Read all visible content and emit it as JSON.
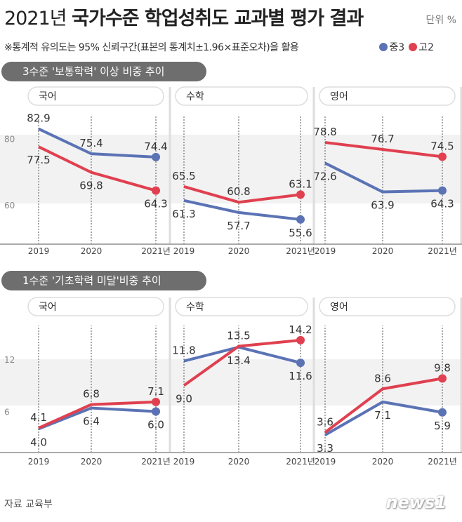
{
  "header": {
    "title_year": "2021년",
    "title_main": "국가수준 학업성취도 교과별 평가 결과",
    "unit": "단위 %",
    "note": "※통계적 유의도는 95% 신뢰구간(표본의 통계치±1.96×표준오차)을 활용"
  },
  "legend": [
    {
      "name": "중3",
      "color": "#5b73b5"
    },
    {
      "name": "고2",
      "color": "#e0404f"
    }
  ],
  "footer": {
    "source": "자료 교육부",
    "logo": "news1"
  },
  "chart_data": [
    {
      "type": "line",
      "title": "3수준 '보통학력' 이상 비중 추이",
      "yticks": [
        80,
        60
      ],
      "categories": [
        "2019",
        "2020",
        "2021년"
      ],
      "panels": [
        {
          "name": "국어",
          "series": [
            {
              "name": "중3",
              "values": [
                82.9,
                75.4,
                74.4
              ]
            },
            {
              "name": "고2",
              "values": [
                77.5,
                69.8,
                64.3
              ]
            }
          ]
        },
        {
          "name": "수학",
          "series": [
            {
              "name": "중3",
              "values": [
                61.3,
                57.7,
                55.6
              ]
            },
            {
              "name": "고2",
              "values": [
                65.5,
                60.8,
                63.1
              ]
            }
          ]
        },
        {
          "name": "영어",
          "series": [
            {
              "name": "중3",
              "values": [
                72.6,
                63.9,
                64.3
              ]
            },
            {
              "name": "고2",
              "values": [
                78.8,
                76.7,
                74.5
              ]
            }
          ]
        }
      ]
    },
    {
      "type": "line",
      "title": "1수준 '기초학력 미달'비중 추이",
      "yticks": [
        12,
        6
      ],
      "categories": [
        "2019",
        "2020",
        "2021년"
      ],
      "panels": [
        {
          "name": "국어",
          "series": [
            {
              "name": "중3",
              "values": [
                4.0,
                6.4,
                6.0
              ]
            },
            {
              "name": "고2",
              "values": [
                4.1,
                6.8,
                7.1
              ]
            }
          ]
        },
        {
          "name": "수학",
          "series": [
            {
              "name": "중3",
              "values": [
                11.8,
                13.4,
                11.6
              ]
            },
            {
              "name": "고2",
              "values": [
                9.0,
                13.5,
                14.2
              ]
            }
          ]
        },
        {
          "name": "영어",
          "series": [
            {
              "name": "중3",
              "values": [
                3.3,
                7.1,
                5.9
              ]
            },
            {
              "name": "고2",
              "values": [
                3.6,
                8.6,
                9.8
              ]
            }
          ]
        }
      ]
    }
  ]
}
